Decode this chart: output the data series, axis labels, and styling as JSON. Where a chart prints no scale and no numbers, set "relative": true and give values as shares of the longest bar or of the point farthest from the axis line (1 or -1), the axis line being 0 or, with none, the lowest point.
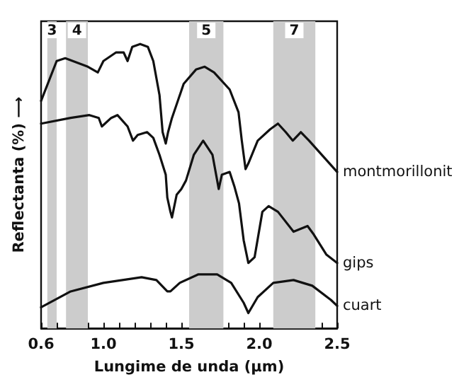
{
  "chart_data": {
    "type": "line",
    "relative": true,
    "xlabel": "Lungime de unda (μm)",
    "ylabel": "Reflectanta (%) ⟶",
    "xlim": [
      0.6,
      2.5
    ],
    "xticks": [
      0.6,
      {
        "value": 0.7,
        "label": null
      },
      {
        "value": 0.8,
        "label": null
      },
      {
        "value": 0.9,
        "label": null
      },
      "1.0",
      {
        "value": 1.1,
        "label": null
      },
      {
        "value": 1.2,
        "label": null
      },
      {
        "value": 1.3,
        "label": null
      },
      {
        "value": 1.4,
        "label": null
      },
      1.5,
      {
        "value": 1.6,
        "label": null
      },
      {
        "value": 1.7,
        "label": null
      },
      {
        "value": 1.8,
        "label": null
      },
      {
        "value": 1.9,
        "label": null
      },
      "2.0",
      {
        "value": 2.1,
        "label": null
      },
      {
        "value": 2.2,
        "label": null
      },
      {
        "value": 2.3,
        "label": null
      },
      {
        "value": 2.4,
        "label": null
      },
      2.5
    ],
    "grid": false,
    "legend": false,
    "marker": "none",
    "line_style": "solid",
    "bands": [
      {
        "axis": "x",
        "from": 0.64,
        "to": 0.7,
        "label": "3",
        "color": "#cccccc"
      },
      {
        "axis": "x",
        "from": 0.76,
        "to": 0.9,
        "label": "4",
        "color": "#cccccc"
      },
      {
        "axis": "x",
        "from": 1.55,
        "to": 1.77,
        "label": "5",
        "color": "#cccccc"
      },
      {
        "axis": "x",
        "from": 2.09,
        "to": 2.36,
        "label": "7",
        "color": "#cccccc"
      }
    ],
    "series": [
      {
        "name": "montmorillonit",
        "color": "#111111",
        "x": [
          0.6,
          0.7,
          0.755,
          0.9,
          0.964,
          1.0,
          1.08,
          1.13,
          1.155,
          1.185,
          1.236,
          1.285,
          1.32,
          1.36,
          1.38,
          1.4,
          1.415,
          1.44,
          1.515,
          1.594,
          1.65,
          1.71,
          1.81,
          1.867,
          1.888,
          1.912,
          1.93,
          1.99,
          2.07,
          2.12,
          2.17,
          2.215,
          2.267,
          2.32,
          2.5
        ],
        "values": [
          0.8,
          0.94,
          0.95,
          0.92,
          0.9,
          0.94,
          0.97,
          0.97,
          0.94,
          0.99,
          1,
          0.99,
          0.94,
          0.82,
          0.69,
          0.65,
          0.69,
          0.74,
          0.86,
          0.91,
          0.92,
          0.9,
          0.84,
          0.76,
          0.66,
          0.56,
          0.58,
          0.66,
          0.7,
          0.72,
          0.69,
          0.66,
          0.69,
          0.66,
          0.55
        ]
      },
      {
        "name": "gips",
        "color": "#111111",
        "x": [
          0.6,
          0.79,
          0.91,
          0.97,
          0.99,
          1.05,
          1.09,
          1.155,
          1.19,
          1.22,
          1.28,
          1.32,
          1.36,
          1.4,
          1.41,
          1.43,
          1.44,
          1.47,
          1.5,
          1.53,
          1.58,
          1.64,
          1.7,
          1.74,
          1.76,
          1.81,
          1.84,
          1.87,
          1.9,
          1.93,
          1.97,
          2.02,
          2.06,
          2.12,
          2.22,
          2.31,
          2.35,
          2.43,
          2.5
        ],
        "values": [
          0.72,
          0.74,
          0.75,
          0.74,
          0.71,
          0.74,
          0.75,
          0.71,
          0.66,
          0.68,
          0.69,
          0.67,
          0.61,
          0.54,
          0.46,
          0.41,
          0.39,
          0.47,
          0.49,
          0.52,
          0.61,
          0.66,
          0.61,
          0.49,
          0.54,
          0.55,
          0.5,
          0.44,
          0.31,
          0.23,
          0.25,
          0.41,
          0.43,
          0.41,
          0.34,
          0.36,
          0.33,
          0.26,
          0.23
        ]
      },
      {
        "name": "cuart",
        "color": "#111111",
        "x": [
          0.6,
          0.79,
          1.0,
          1.245,
          1.34,
          1.41,
          1.43,
          1.49,
          1.61,
          1.73,
          1.82,
          1.9,
          1.93,
          1.99,
          2.09,
          2.22,
          2.34,
          2.46,
          2.5
        ],
        "values": [
          0.074,
          0.13,
          0.16,
          0.18,
          0.17,
          0.13,
          0.13,
          0.16,
          0.19,
          0.19,
          0.16,
          0.09,
          0.054,
          0.11,
          0.16,
          0.17,
          0.15,
          0.1,
          0.079
        ]
      }
    ]
  }
}
